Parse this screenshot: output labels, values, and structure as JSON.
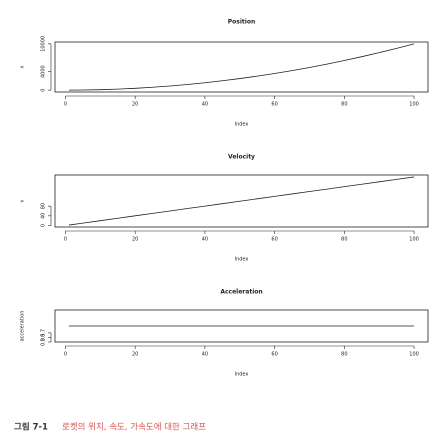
{
  "chart_data": [
    {
      "type": "line",
      "title": "Position",
      "x_label": "Index",
      "y_label": "x",
      "x": [
        1,
        5,
        10,
        15,
        20,
        25,
        30,
        35,
        40,
        45,
        50,
        55,
        60,
        65,
        70,
        75,
        80,
        85,
        90,
        95,
        100
      ],
      "values": [
        1,
        25,
        100,
        225,
        400,
        625,
        900,
        1225,
        1600,
        2025,
        2500,
        3025,
        3600,
        4225,
        4900,
        5625,
        6400,
        7225,
        8100,
        9025,
        10000
      ],
      "color": "#222222",
      "xlim": [
        -3,
        104
      ],
      "ylim": [
        -400,
        10400
      ],
      "xticks": [
        0,
        20,
        40,
        60,
        80,
        100
      ],
      "yticks": [
        0,
        4000,
        10000
      ]
    },
    {
      "type": "line",
      "title": "Velocity",
      "x_label": "Index",
      "y_label": "v",
      "x": [
        1,
        5,
        10,
        15,
        20,
        25,
        30,
        35,
        40,
        45,
        50,
        55,
        60,
        65,
        70,
        75,
        80,
        85,
        90,
        95,
        100
      ],
      "values": [
        2,
        10,
        20,
        30,
        40,
        50,
        60,
        70,
        80,
        90,
        100,
        110,
        120,
        130,
        140,
        150,
        160,
        170,
        180,
        190,
        200
      ],
      "color": "#222222",
      "xlim": [
        -3,
        104
      ],
      "ylim": [
        -6,
        208
      ],
      "xticks": [
        0,
        20,
        40,
        60,
        80,
        100
      ],
      "yticks": [
        0,
        40,
        80
      ]
    },
    {
      "type": "line",
      "title": "Acceleration",
      "x_label": "Index",
      "y_label": "acceleration",
      "x": [
        1,
        5,
        10,
        15,
        20,
        25,
        30,
        35,
        40,
        45,
        50,
        55,
        60,
        65,
        70,
        75,
        80,
        85,
        90,
        95,
        100
      ],
      "values": [
        1,
        1,
        1,
        1,
        1,
        1,
        1,
        1,
        1,
        1,
        1,
        1,
        1,
        1,
        1,
        1,
        1,
        1,
        1,
        1,
        1
      ],
      "color": "#222222",
      "xlim": [
        -3,
        104
      ],
      "ylim": [
        0.3,
        1.7
      ],
      "xticks": [
        0,
        20,
        40,
        60,
        80,
        100
      ],
      "yticks": [
        {
          "value": 0.3,
          "label": "0.3"
        },
        {
          "value": 0.5,
          "label": "0.5"
        },
        {
          "value": 0.7,
          "label": "0.7"
        }
      ]
    }
  ],
  "caption": {
    "label": "그림 7-1",
    "text": "로켓의 위치, 속도, 가속도에 대한 그래프"
  }
}
